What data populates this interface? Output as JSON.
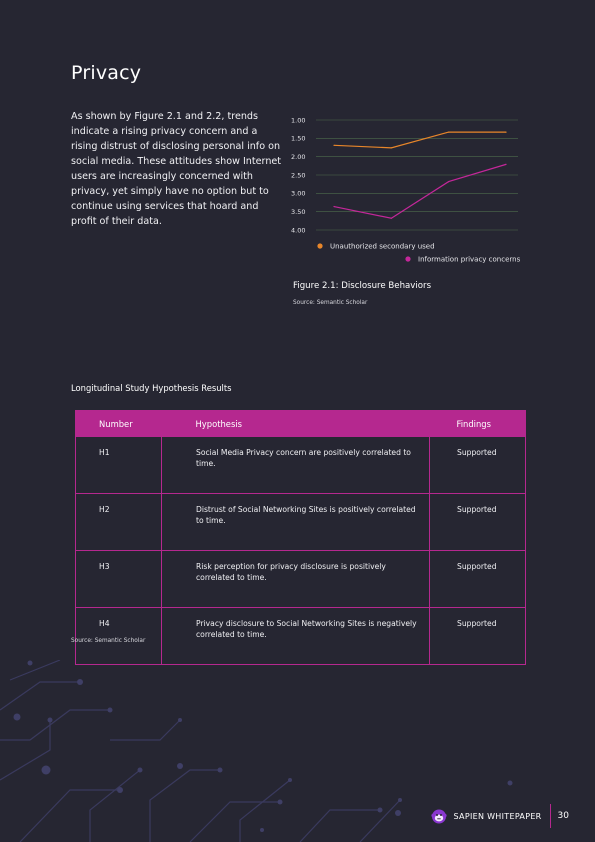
{
  "heading": "Privacy",
  "intro_text": "As shown by Figure 2.1 and 2.2, trends indicate a rising privacy concern and a rising distrust of disclosing personal info on social media. These attitudes show Internet users are increasingly concerned with privacy, yet simply have no option but to continue using services that hoard and profit of their data.",
  "figure": {
    "caption": "Figure 2.1: Disclosure Behaviors",
    "source": "Source: Semantic Scholar"
  },
  "chart_data": {
    "type": "line",
    "title": "",
    "xlabel": "",
    "ylabel": "",
    "x": [
      1,
      2,
      3,
      4
    ],
    "yticks": [
      "1.00",
      "1.50",
      "2.00",
      "2.50",
      "3.00",
      "3.50",
      "4.00"
    ],
    "ylim": [
      1.0,
      4.0
    ],
    "y_inverted": true,
    "grid": true,
    "legend_position": "bottom-right",
    "series": [
      {
        "name": "Unauthorized secondary used",
        "color": "#e8862a",
        "values": [
          1.69,
          1.76,
          1.33,
          1.33
        ]
      },
      {
        "name": "Information privacy concerns",
        "color": "#c4279a",
        "values": [
          3.36,
          3.68,
          2.68,
          2.21
        ]
      }
    ]
  },
  "table": {
    "title": "Longitudinal Study Hypothesis Results",
    "headers": [
      "Number",
      "Hypothesis",
      "Findings"
    ],
    "rows": [
      {
        "number": "H1",
        "hypothesis": "Social Media Privacy concern are positively correlated to time.",
        "finding": "Supported"
      },
      {
        "number": "H2",
        "hypothesis": "Distrust of Social Networking Sites is positively correlated to time.",
        "finding": "Supported"
      },
      {
        "number": "H3",
        "hypothesis": "Risk perception for privacy disclosure is positively correlated to time.",
        "finding": "Supported"
      },
      {
        "number": "H4",
        "hypothesis": "Privacy disclosure to Social Networking Sites is negatively correlated to time.",
        "finding": "Supported"
      }
    ],
    "source": "Source: Semantic Scholar"
  },
  "footer": {
    "brand": "SAPIEN WHITEPAPER",
    "page_number": "30",
    "logo_icon": "gorilla-logo-icon"
  },
  "colors": {
    "background": "#262632",
    "accent": "#b5288f",
    "series_orange": "#e8862a",
    "series_magenta": "#c4279a"
  }
}
